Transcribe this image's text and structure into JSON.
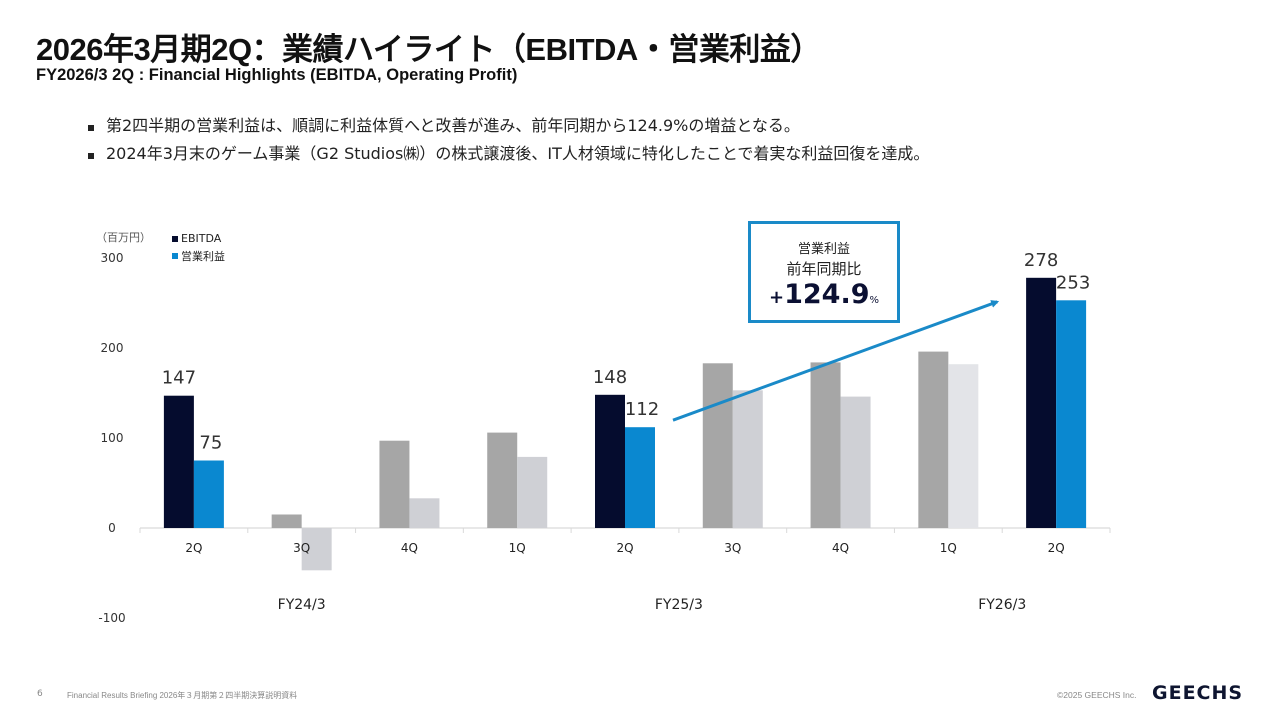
{
  "header": {
    "title": "2026年3月期2Q：業績ハイライト（EBITDA・営業利益）",
    "subtitle": "FY2026/3 2Q : Financial Highlights (EBITDA, Operating Profit)"
  },
  "bullets": [
    "第2四半期の営業利益は、順調に利益体質へと改善が進み、前年同期から124.9%の増益となる。",
    "2024年3月末のゲーム事業（G2 Studios㈱）の株式譲渡後、IT人材領域に特化したことで着実な利益回復を達成。"
  ],
  "callout": {
    "line1": "営業利益",
    "line2": "前年同期比",
    "sign": "+",
    "value": "124.9",
    "unit": "%"
  },
  "colors": {
    "ebitda_highlight": "#050c2e",
    "op_highlight": "#0a88d0",
    "ebitda_other": "#a6a6a6",
    "op_other": "#cfd0d5",
    "op_other_light": "#e3e4e8",
    "arrow": "#1a8ac8"
  },
  "chart_data": {
    "type": "bar",
    "title": "",
    "unit_label": "（百万円）",
    "xlabel": "",
    "ylabel": "",
    "ylim": [
      -100,
      300
    ],
    "yticks": [
      300,
      200,
      100,
      0,
      -100
    ],
    "grid": false,
    "legend": "top-left",
    "categories": [
      "2Q",
      "3Q",
      "4Q",
      "1Q",
      "2Q",
      "3Q",
      "4Q",
      "1Q",
      "2Q"
    ],
    "fiscal_years": [
      {
        "label": "FY24/3",
        "from": 0,
        "to": 2
      },
      {
        "label": "FY25/3",
        "from": 3,
        "to": 6
      },
      {
        "label": "FY26/3",
        "from": 7,
        "to": 8
      }
    ],
    "highlighted": [
      0,
      4,
      8
    ],
    "series": [
      {
        "name": "EBITDA",
        "values": [
          147,
          15,
          97,
          106,
          148,
          183,
          184,
          196,
          278
        ]
      },
      {
        "name": "営業利益",
        "values": [
          75,
          -47,
          33,
          79,
          112,
          153,
          146,
          182,
          253
        ]
      }
    ],
    "data_labels": [
      {
        "category": 0,
        "series": 0,
        "text": "147"
      },
      {
        "category": 0,
        "series": 1,
        "text": "75"
      },
      {
        "category": 4,
        "series": 0,
        "text": "148"
      },
      {
        "category": 4,
        "series": 1,
        "text": "112"
      },
      {
        "category": 8,
        "series": 0,
        "text": "278"
      },
      {
        "category": 8,
        "series": 1,
        "text": "253"
      }
    ],
    "annotation": "営業利益 前年同期比 +124.9%"
  },
  "footer": {
    "page": "6",
    "doc": "Financial Results Briefing 2026年３月期第２四半期決算説明資料",
    "copyright": "©2025 GEECHS Inc.",
    "logo": "GEECHS"
  }
}
